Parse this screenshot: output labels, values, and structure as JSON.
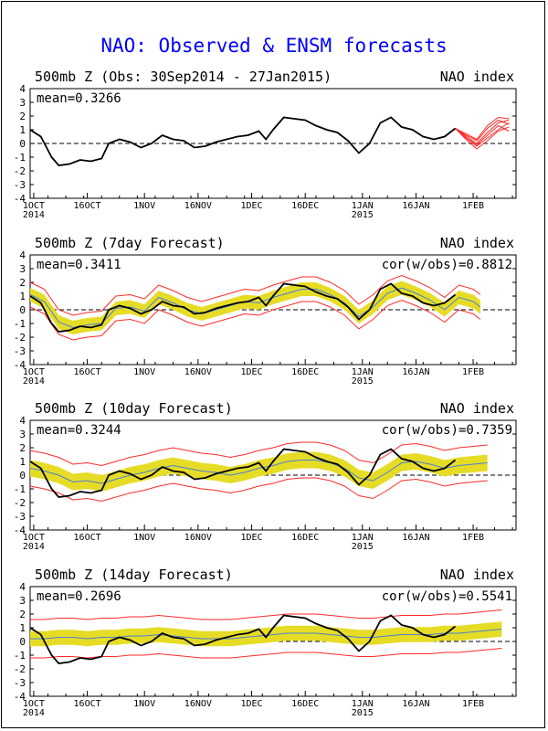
{
  "title": "NAO: Observed & ENSM forecasts",
  "colors": {
    "title": "#0000ff",
    "obs": "#000000",
    "ens_mean": "#4a7fd6",
    "spread": "#e6dc26",
    "bounds": "#ff2a2a"
  },
  "panels": [
    {
      "left_title": "500mb Z (Obs: 30Sep2014 - 27Jan2015)",
      "right_title": "NAO index",
      "mean": "mean=0.3266",
      "cor": ""
    },
    {
      "left_title": "500mb Z (7day Forecast)",
      "right_title": "NAO index",
      "mean": "mean=0.3411",
      "cor": "cor(w/obs)=0.8812"
    },
    {
      "left_title": "500mb Z (10day Forecast)",
      "right_title": "NAO index",
      "mean": "mean=0.3244",
      "cor": "cor(w/obs)=0.7359"
    },
    {
      "left_title": "500mb Z (14day Forecast)",
      "right_title": "NAO index",
      "mean": "mean=0.2696",
      "cor": "cor(w/obs)=0.5541"
    }
  ],
  "chart_data": {
    "type": "line",
    "x_axis": {
      "range": [
        "2014-09-30",
        "2015-02-13"
      ],
      "tick_labels": [
        {
          "date": "2014-10-01",
          "label": "1OCT",
          "sub": "2014"
        },
        {
          "date": "2014-10-16",
          "label": "16OCT",
          "sub": ""
        },
        {
          "date": "2014-11-01",
          "label": "1NOV",
          "sub": ""
        },
        {
          "date": "2014-11-16",
          "label": "16NOV",
          "sub": ""
        },
        {
          "date": "2014-12-01",
          "label": "1DEC",
          "sub": ""
        },
        {
          "date": "2014-12-16",
          "label": "16DEC",
          "sub": ""
        },
        {
          "date": "2015-01-01",
          "label": "1JAN",
          "sub": "2015"
        },
        {
          "date": "2015-01-16",
          "label": "16JAN",
          "sub": ""
        },
        {
          "date": "2015-02-01",
          "label": "1FEB",
          "sub": ""
        }
      ]
    },
    "ylim": [
      -4,
      4
    ],
    "yticks": [
      -4,
      -3,
      -2,
      -1,
      0,
      1,
      2,
      3,
      4
    ],
    "reference_line": 0,
    "observed": {
      "name": "Observed",
      "x": [
        "2014-09-30",
        "2014-10-03",
        "2014-10-06",
        "2014-10-08",
        "2014-10-11",
        "2014-10-14",
        "2014-10-17",
        "2014-10-20",
        "2014-10-22",
        "2014-10-25",
        "2014-10-28",
        "2014-10-31",
        "2014-11-03",
        "2014-11-06",
        "2014-11-09",
        "2014-11-12",
        "2014-11-15",
        "2014-11-18",
        "2014-11-21",
        "2014-11-24",
        "2014-11-27",
        "2014-11-30",
        "2014-12-03",
        "2014-12-05",
        "2014-12-07",
        "2014-12-10",
        "2014-12-13",
        "2014-12-16",
        "2014-12-19",
        "2014-12-22",
        "2014-12-25",
        "2014-12-28",
        "2014-12-31",
        "2015-01-03",
        "2015-01-06",
        "2015-01-09",
        "2015-01-12",
        "2015-01-15",
        "2015-01-18",
        "2015-01-21",
        "2015-01-24",
        "2015-01-27"
      ],
      "y": [
        1.0,
        0.5,
        -1.0,
        -1.6,
        -1.5,
        -1.2,
        -1.3,
        -1.1,
        0.0,
        0.3,
        0.1,
        -0.3,
        0.0,
        0.6,
        0.3,
        0.2,
        -0.3,
        -0.2,
        0.1,
        0.3,
        0.5,
        0.6,
        0.9,
        0.3,
        1.0,
        1.9,
        1.8,
        1.7,
        1.3,
        1.0,
        0.8,
        0.2,
        -0.7,
        0.0,
        1.5,
        1.9,
        1.2,
        1.0,
        0.5,
        0.3,
        0.5,
        1.1
      ]
    },
    "ensemble_forecasts": {
      "name": "ENSM forecasts",
      "x": [
        "2015-01-27",
        "2015-01-30",
        "2015-02-02",
        "2015-02-05",
        "2015-02-08",
        "2015-02-11"
      ],
      "members": [
        [
          1.1,
          0.5,
          0.0,
          0.8,
          1.5,
          1.7
        ],
        [
          1.1,
          0.4,
          -0.2,
          0.4,
          1.0,
          1.5
        ],
        [
          1.1,
          0.6,
          0.2,
          1.1,
          1.7,
          1.4
        ],
        [
          1.1,
          0.3,
          -0.4,
          0.2,
          0.9,
          1.2
        ],
        [
          1.1,
          0.7,
          0.3,
          1.3,
          1.9,
          1.8
        ],
        [
          1.1,
          0.5,
          -0.1,
          0.6,
          1.3,
          0.9
        ]
      ]
    },
    "forecasts": [
      {
        "lead": "7day",
        "x": [
          "2014-09-30",
          "2014-10-04",
          "2014-10-08",
          "2014-10-12",
          "2014-10-16",
          "2014-10-20",
          "2014-10-24",
          "2014-10-28",
          "2014-11-01",
          "2014-11-05",
          "2014-11-09",
          "2014-11-13",
          "2014-11-17",
          "2014-11-21",
          "2014-11-25",
          "2014-11-29",
          "2014-12-03",
          "2014-12-07",
          "2014-12-11",
          "2014-12-15",
          "2014-12-19",
          "2014-12-23",
          "2014-12-27",
          "2014-12-31",
          "2015-01-04",
          "2015-01-08",
          "2015-01-12",
          "2015-01-16",
          "2015-01-20",
          "2015-01-24",
          "2015-01-28",
          "2015-02-01",
          "2015-02-03"
        ],
        "mean": [
          1.1,
          0.6,
          -0.9,
          -1.3,
          -1.1,
          -1.0,
          0.1,
          0.2,
          -0.1,
          0.9,
          0.5,
          0.0,
          -0.3,
          0.0,
          0.3,
          0.6,
          0.5,
          0.9,
          1.2,
          1.5,
          1.5,
          1.1,
          0.5,
          -0.5,
          0.2,
          1.2,
          1.6,
          1.2,
          0.7,
          0.0,
          0.9,
          0.6,
          0.2
        ],
        "spread": [
          0.5,
          0.5,
          0.5,
          0.5,
          0.5,
          0.5,
          0.5,
          0.5,
          0.5,
          0.5,
          0.5,
          0.5,
          0.5,
          0.5,
          0.5,
          0.5,
          0.5,
          0.5,
          0.5,
          0.5,
          0.5,
          0.5,
          0.5,
          0.5,
          0.5,
          0.5,
          0.5,
          0.5,
          0.5,
          0.5,
          0.5,
          0.5,
          0.5
        ],
        "bound": [
          0.9,
          0.9,
          0.9,
          0.9,
          0.9,
          0.9,
          0.9,
          0.9,
          0.9,
          0.9,
          0.9,
          0.9,
          0.9,
          0.9,
          0.9,
          0.9,
          0.9,
          0.9,
          0.9,
          0.9,
          0.9,
          0.9,
          0.9,
          0.9,
          0.9,
          0.9,
          0.9,
          0.9,
          0.9,
          0.9,
          0.9,
          0.9,
          0.9
        ]
      },
      {
        "lead": "10day",
        "x": [
          "2014-09-30",
          "2014-10-04",
          "2014-10-08",
          "2014-10-12",
          "2014-10-16",
          "2014-10-20",
          "2014-10-24",
          "2014-10-28",
          "2014-11-01",
          "2014-11-05",
          "2014-11-09",
          "2014-11-13",
          "2014-11-17",
          "2014-11-21",
          "2014-11-25",
          "2014-11-29",
          "2014-12-03",
          "2014-12-07",
          "2014-12-11",
          "2014-12-15",
          "2014-12-19",
          "2014-12-23",
          "2014-12-27",
          "2014-12-31",
          "2015-01-04",
          "2015-01-08",
          "2015-01-12",
          "2015-01-16",
          "2015-01-20",
          "2015-01-24",
          "2015-01-28",
          "2015-02-01",
          "2015-02-05"
        ],
        "mean": [
          0.5,
          0.3,
          0.0,
          -0.5,
          -0.4,
          -0.6,
          -0.3,
          0.0,
          0.2,
          0.5,
          0.7,
          0.5,
          0.3,
          0.2,
          0.0,
          0.2,
          0.5,
          0.7,
          1.0,
          1.1,
          1.1,
          0.9,
          0.5,
          -0.2,
          -0.4,
          0.2,
          0.9,
          1.0,
          0.8,
          0.5,
          0.7,
          0.8,
          0.9
        ],
        "spread": [
          0.6,
          0.6,
          0.6,
          0.6,
          0.6,
          0.6,
          0.6,
          0.6,
          0.6,
          0.6,
          0.6,
          0.6,
          0.6,
          0.6,
          0.6,
          0.6,
          0.6,
          0.6,
          0.6,
          0.6,
          0.6,
          0.6,
          0.6,
          0.6,
          0.6,
          0.6,
          0.6,
          0.6,
          0.6,
          0.6,
          0.6,
          0.6,
          0.6
        ],
        "bound": [
          1.3,
          1.3,
          1.3,
          1.3,
          1.3,
          1.3,
          1.3,
          1.3,
          1.3,
          1.3,
          1.3,
          1.3,
          1.3,
          1.3,
          1.3,
          1.3,
          1.3,
          1.3,
          1.3,
          1.3,
          1.3,
          1.3,
          1.3,
          1.3,
          1.3,
          1.3,
          1.3,
          1.3,
          1.3,
          1.3,
          1.3,
          1.3,
          1.3
        ]
      },
      {
        "lead": "14day",
        "x": [
          "2014-09-30",
          "2014-10-04",
          "2014-10-08",
          "2014-10-12",
          "2014-10-16",
          "2014-10-20",
          "2014-10-24",
          "2014-10-28",
          "2014-11-01",
          "2014-11-05",
          "2014-11-09",
          "2014-11-13",
          "2014-11-17",
          "2014-11-21",
          "2014-11-25",
          "2014-11-29",
          "2014-12-03",
          "2014-12-07",
          "2014-12-11",
          "2014-12-15",
          "2014-12-19",
          "2014-12-23",
          "2014-12-27",
          "2014-12-31",
          "2015-01-04",
          "2015-01-08",
          "2015-01-12",
          "2015-01-16",
          "2015-01-20",
          "2015-01-24",
          "2015-01-28",
          "2015-02-01",
          "2015-02-05",
          "2015-02-09"
        ],
        "mean": [
          0.2,
          0.2,
          0.3,
          0.3,
          0.2,
          0.3,
          0.3,
          0.4,
          0.4,
          0.5,
          0.4,
          0.3,
          0.2,
          0.2,
          0.2,
          0.3,
          0.4,
          0.5,
          0.6,
          0.6,
          0.6,
          0.5,
          0.4,
          0.3,
          0.3,
          0.4,
          0.5,
          0.5,
          0.5,
          0.6,
          0.6,
          0.7,
          0.8,
          0.9
        ],
        "spread": [
          0.55,
          0.55,
          0.55,
          0.55,
          0.55,
          0.55,
          0.55,
          0.55,
          0.55,
          0.55,
          0.55,
          0.55,
          0.55,
          0.55,
          0.55,
          0.55,
          0.55,
          0.55,
          0.55,
          0.55,
          0.55,
          0.55,
          0.55,
          0.55,
          0.55,
          0.55,
          0.55,
          0.55,
          0.55,
          0.55,
          0.55,
          0.55,
          0.55,
          0.55
        ],
        "bound": [
          1.4,
          1.4,
          1.4,
          1.4,
          1.4,
          1.4,
          1.4,
          1.4,
          1.4,
          1.4,
          1.4,
          1.4,
          1.4,
          1.4,
          1.4,
          1.4,
          1.4,
          1.4,
          1.4,
          1.4,
          1.4,
          1.4,
          1.4,
          1.4,
          1.4,
          1.4,
          1.4,
          1.4,
          1.4,
          1.4,
          1.4,
          1.4,
          1.4,
          1.4
        ]
      }
    ]
  }
}
